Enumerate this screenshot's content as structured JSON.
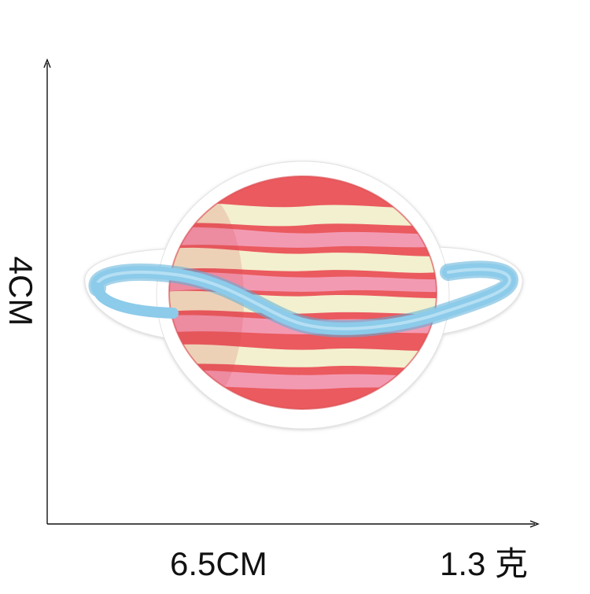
{
  "dimensions": {
    "height_label": "4CM",
    "width_label": "6.5CM",
    "weight_label": "1.3 克"
  },
  "product": {
    "subject": "planet-patch-icon",
    "colors": {
      "planet_red": "#ea5a5e",
      "planet_cream": "#f3f0cf",
      "planet_pink": "#f39ab3",
      "ring_blue": "#8ccbea",
      "ring_outline": "#5aaed8",
      "backing_white": "#ffffff",
      "axis_line": "#111111"
    }
  }
}
